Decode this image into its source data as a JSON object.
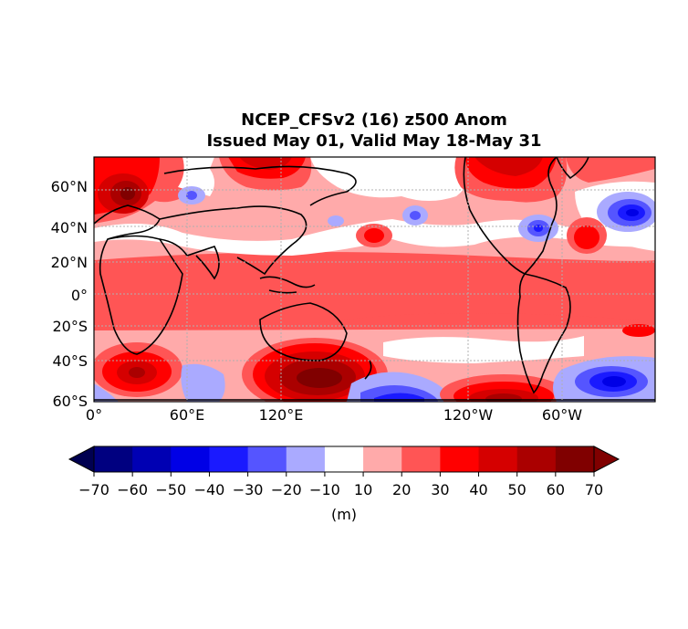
{
  "title_line1": "NCEP_CFSv2 (16) z500 Anom",
  "title_line2": "Issued May 01, Valid May 18-May 31",
  "lat_labels": [
    "60°N",
    "40°N",
    "20°N",
    "0°",
    "20°S",
    "40°S",
    "60°S"
  ],
  "lon_labels": [
    "0°",
    "60°E",
    "120°E",
    "120°W",
    "60°W"
  ],
  "colorbar": {
    "ticks": [
      "−70",
      "−60",
      "−50",
      "−40",
      "−30",
      "−20",
      "−10",
      "10",
      "20",
      "30",
      "40",
      "50",
      "60",
      "70"
    ],
    "unit_label": "(m)",
    "colors": [
      "#000080",
      "#0000b3",
      "#0000e6",
      "#1a1aff",
      "#5555ff",
      "#aaaaff",
      "#ffffff",
      "#ffaaaa",
      "#ff5555",
      "#ff0000",
      "#d50000",
      "#aa0000",
      "#800000"
    ],
    "under_color": "#000050",
    "over_color": "#800000"
  }
}
